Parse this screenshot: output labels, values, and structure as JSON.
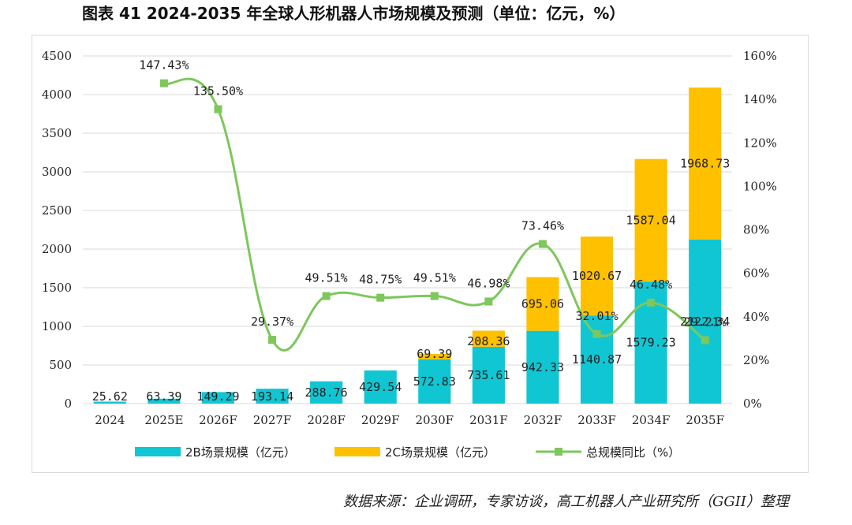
{
  "title": "图表 41   2024-2035 年全球人形机器人市场规模及预测（单位：亿元，%）",
  "source": "数据来源：企业调研，专家访谈，高工机器人产业研究所（GGII）整理",
  "chart_data": {
    "type": "bar",
    "stacked": true,
    "categories": [
      "2024",
      "2025E",
      "2026F",
      "2027F",
      "2028F",
      "2029F",
      "2030F",
      "2031F",
      "2032F",
      "2033F",
      "2034F",
      "2035F"
    ],
    "series": [
      {
        "name": "2B场景规模（亿元）",
        "type": "bar",
        "axis": "left",
        "color": "#11C6D3",
        "values": [
          25.62,
          63.39,
          149.29,
          193.14,
          288.76,
          429.54,
          572.83,
          735.61,
          942.33,
          1140.87,
          1579.23,
          2122.34
        ],
        "labels": [
          "25.62",
          "63.39",
          "149.29",
          "193.14",
          "288.76",
          "429.54",
          "572.83",
          "735.61",
          "942.33",
          "1140.87",
          "1579.23",
          "2122.34"
        ]
      },
      {
        "name": "2C场景规模（亿元）",
        "type": "bar",
        "axis": "left",
        "color": "#FFC000",
        "values": [
          null,
          null,
          null,
          null,
          null,
          null,
          69.39,
          208.36,
          695.06,
          1020.67,
          1587.04,
          1968.73
        ],
        "labels": [
          "",
          "",
          "",
          "",
          "",
          "",
          "69.39",
          "208.36",
          "695.06",
          "1020.67",
          "1587.04",
          "1968.73"
        ]
      },
      {
        "name": "总规模同比（%）",
        "type": "line",
        "axis": "right",
        "color": "#7DC75B",
        "values": [
          null,
          147.43,
          135.5,
          29.37,
          49.51,
          48.75,
          49.51,
          46.98,
          73.46,
          32.01,
          46.48,
          29.21
        ],
        "labels": [
          "",
          "147.43%",
          "135.50%",
          "29.37%",
          "49.51%",
          "48.75%",
          "49.51%",
          "46.98%",
          "73.46%",
          "32.01%",
          "46.48%",
          "29.21%"
        ]
      }
    ],
    "y_left": {
      "min": 0,
      "max": 4500,
      "ticks": [
        "0",
        "500",
        "1000",
        "1500",
        "2000",
        "2500",
        "3000",
        "3500",
        "4000",
        "4500"
      ]
    },
    "y_right": {
      "min": 0,
      "max": 160,
      "ticks": [
        "0%",
        "20%",
        "40%",
        "60%",
        "80%",
        "100%",
        "120%",
        "140%",
        "160%"
      ]
    },
    "grid": true,
    "legend": "bottom"
  }
}
